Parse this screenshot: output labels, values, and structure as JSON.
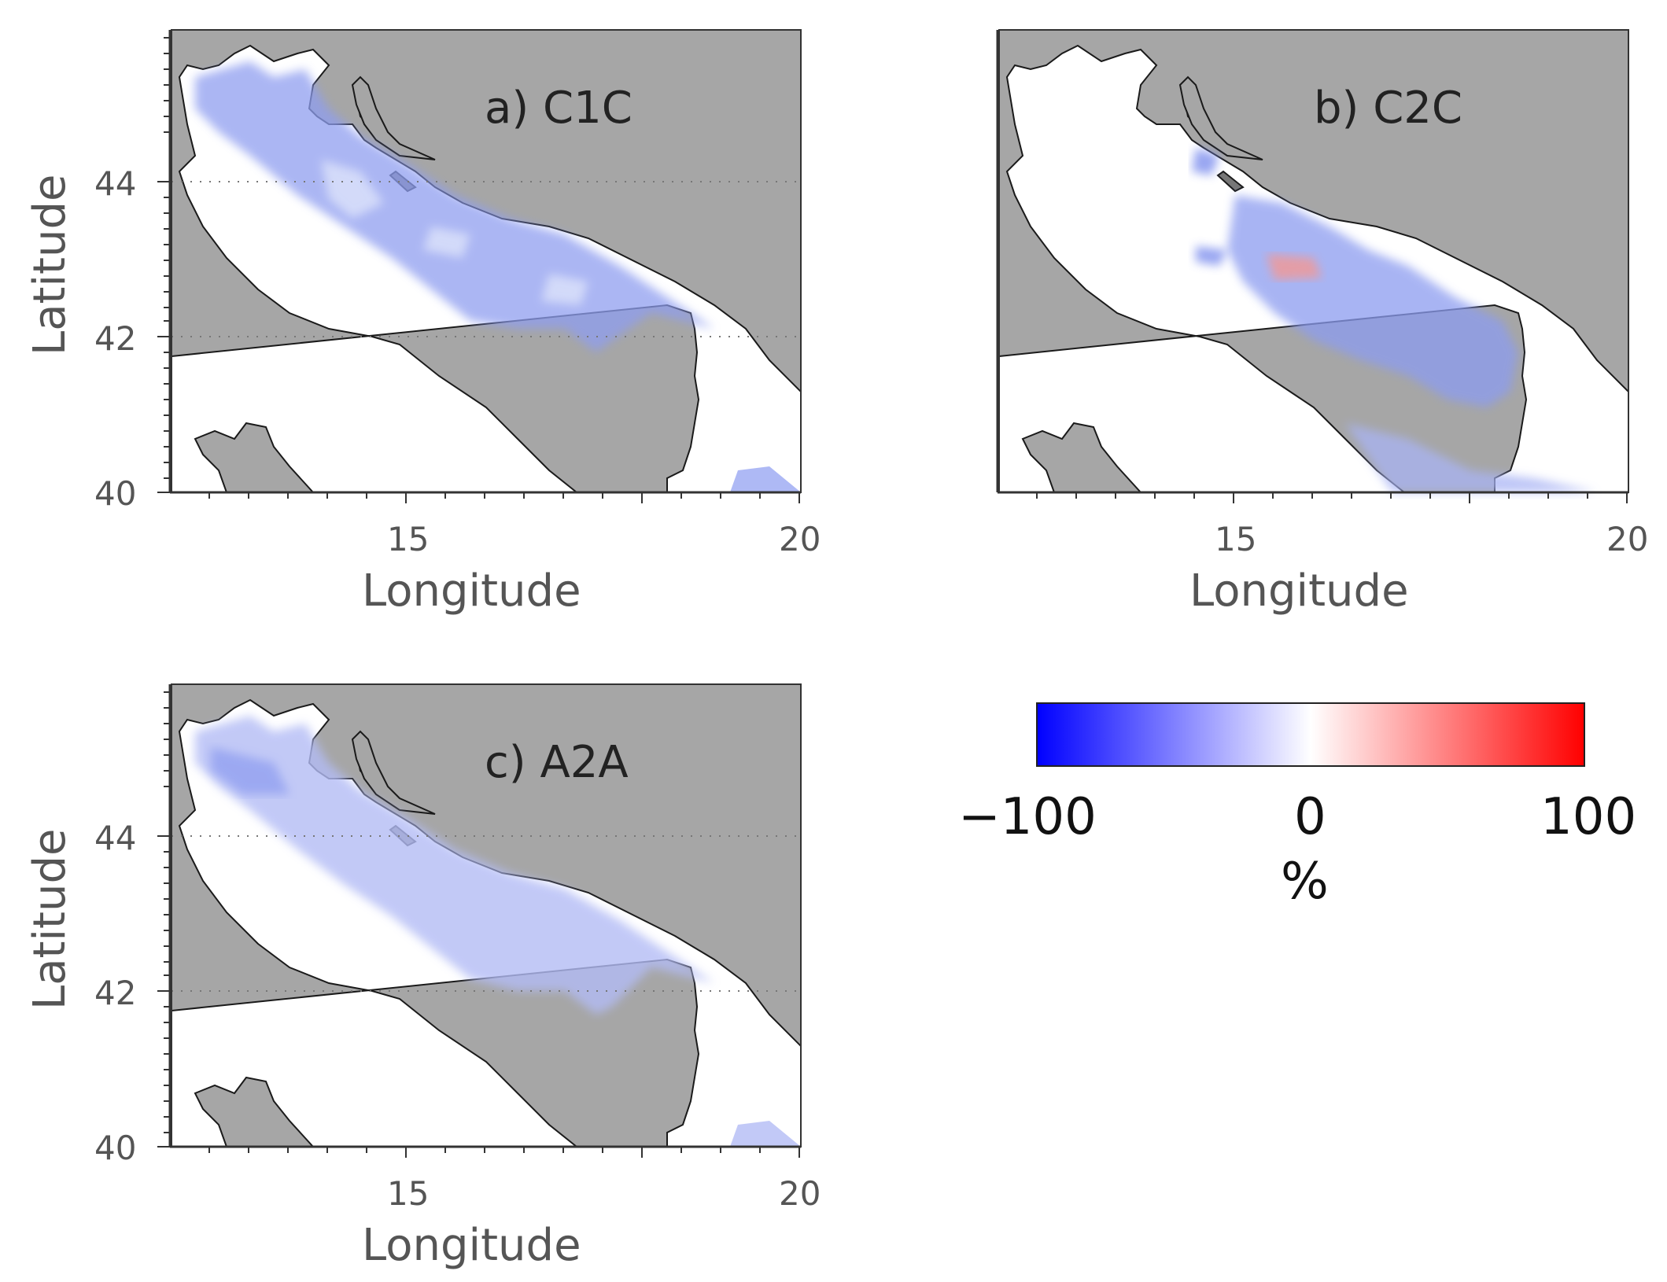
{
  "figure": {
    "panels": [
      {
        "id": "a",
        "title": "a) C1C",
        "xlabel": "Longitude",
        "ylabel": "Latitude",
        "xticks": [
          "15",
          "20"
        ],
        "yticks": [
          "40",
          "42",
          "44"
        ],
        "show_ylabel": true
      },
      {
        "id": "b",
        "title": "b) C2C",
        "xlabel": "Longitude",
        "ylabel": "",
        "xticks": [
          "15",
          "20"
        ],
        "yticks": [],
        "show_ylabel": false
      },
      {
        "id": "c",
        "title": "c) A2A",
        "xlabel": "Longitude",
        "ylabel": "Latitude",
        "xticks": [
          "15",
          "20"
        ],
        "yticks": [
          "40",
          "42",
          "44"
        ],
        "show_ylabel": true
      }
    ],
    "colorbar": {
      "min_label": "−100",
      "mid_label": "0",
      "max_label": "100",
      "unit": "%",
      "colors": {
        "low": "#0000ff",
        "mid": "#ffffff",
        "high": "#ff0000"
      }
    },
    "colors": {
      "land": "#a6a6a6",
      "sea": "#ffffff",
      "coast": "#1a1a1a",
      "grid": "#777777"
    }
  },
  "chart_data": [
    {
      "type": "heatmap",
      "title": "a) C1C",
      "xlabel": "Longitude",
      "ylabel": "Latitude",
      "xlim": [
        12.0,
        20.0
      ],
      "ylim": [
        40.0,
        46.0
      ],
      "xticks": [
        15,
        20
      ],
      "yticks": [
        40,
        42,
        44
      ],
      "grid": "dotted at 42 and 44",
      "colorbar_range": [
        -100,
        100
      ],
      "pattern": "widespread weak-to-moderate negative values (blue) over central Adriatic, near zero along coast"
    },
    {
      "type": "heatmap",
      "title": "b) C2C",
      "xlabel": "Longitude",
      "ylabel": "",
      "xlim": [
        12.0,
        20.0
      ],
      "ylim": [
        40.0,
        46.0
      ],
      "xticks": [
        15,
        20
      ],
      "yticks": [],
      "grid": "none",
      "colorbar_range": [
        -100,
        100
      ],
      "pattern": "negative values (blue) in central and southern basin, small positive patch near 43°N 16°E"
    },
    {
      "type": "heatmap",
      "title": "c) A2A",
      "xlabel": "Longitude",
      "ylabel": "Latitude",
      "xlim": [
        12.0,
        20.0
      ],
      "ylim": [
        40.0,
        46.0
      ],
      "xticks": [
        15,
        20
      ],
      "yticks": [
        40,
        42,
        44
      ],
      "grid": "dotted at 42 and 44",
      "colorbar_range": [
        -100,
        100
      ],
      "pattern": "weak negative values (light blue) over most of the basin"
    }
  ]
}
